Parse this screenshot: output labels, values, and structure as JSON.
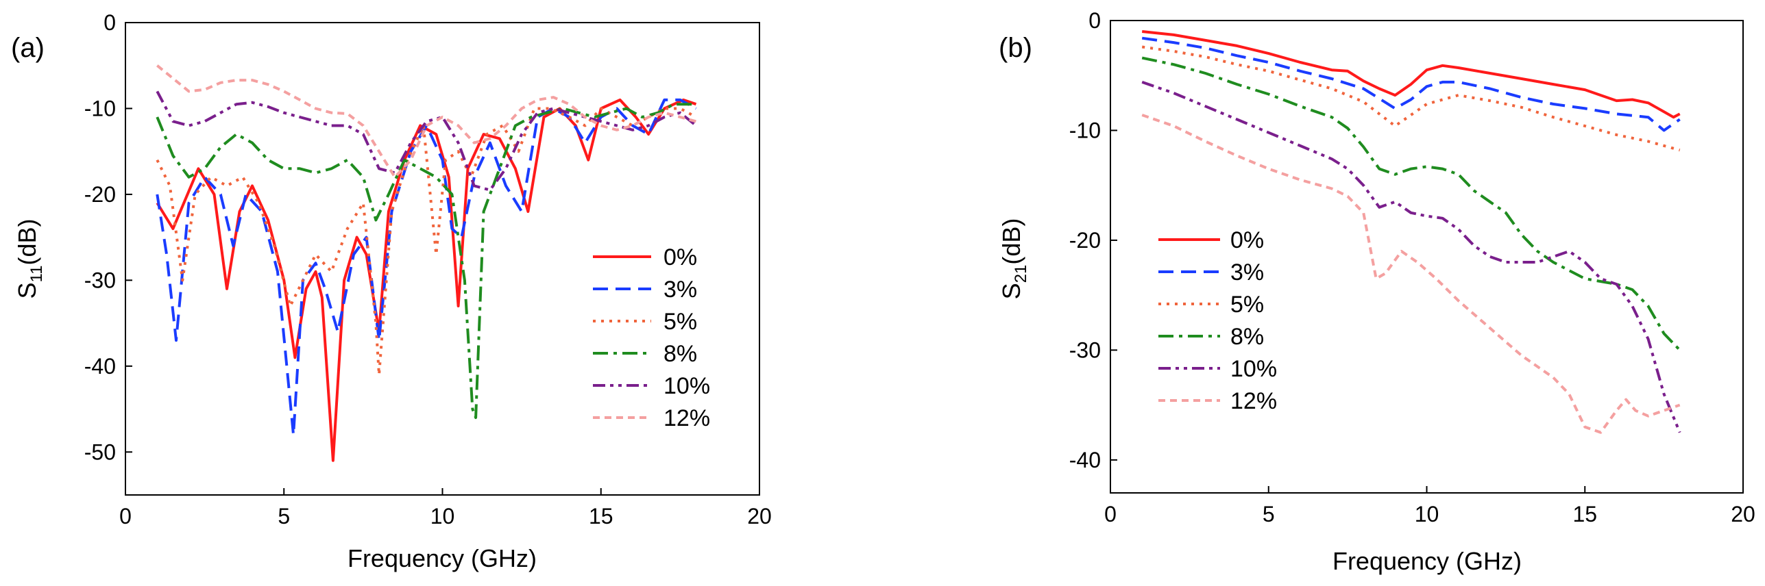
{
  "chart_data": [
    {
      "type": "line",
      "panel_label": "(a)",
      "xlabel": "Frequency (GHz)",
      "ylabel_main": "S",
      "ylabel_sub": "11",
      "ylabel_unit": "(dB)",
      "xlim": [
        0,
        20
      ],
      "ylim": [
        -55,
        0
      ],
      "xticks": [
        0,
        5,
        10,
        15,
        20
      ],
      "yticks": [
        0,
        -10,
        -20,
        -30,
        -40,
        -50
      ],
      "legend_position": "lower-right",
      "series": [
        {
          "name": "0%",
          "color": "#ff1a1a",
          "dash": "solid",
          "x": [
            1.0,
            1.5,
            2.3,
            2.8,
            3.2,
            3.6,
            4.0,
            4.5,
            5.0,
            5.35,
            5.7,
            6.0,
            6.2,
            6.55,
            6.9,
            7.3,
            7.6,
            8.0,
            8.3,
            8.8,
            9.3,
            9.8,
            10.2,
            10.5,
            10.8,
            11.3,
            11.8,
            12.3,
            12.7,
            13.2,
            13.7,
            14.2,
            14.6,
            15.0,
            15.6,
            16.1,
            16.5,
            17.0,
            17.6,
            18.0
          ],
          "y": [
            -21,
            -24,
            -17,
            -20,
            -31,
            -22,
            -19,
            -23,
            -30,
            -39,
            -31,
            -29,
            -32,
            -51,
            -30,
            -25,
            -27,
            -36,
            -22,
            -16,
            -12,
            -13,
            -18,
            -33,
            -17,
            -13,
            -13.5,
            -17,
            -22,
            -11,
            -10,
            -12,
            -16,
            -10,
            -9,
            -11,
            -13,
            -10,
            -9,
            -9.5
          ]
        },
        {
          "name": "3%",
          "color": "#1a3cff",
          "dash": "dashed",
          "x": [
            1.0,
            1.3,
            1.6,
            2.0,
            2.5,
            3.0,
            3.4,
            3.8,
            4.3,
            4.8,
            5.3,
            5.6,
            6.0,
            6.3,
            6.7,
            7.2,
            7.6,
            8.0,
            8.4,
            9.0,
            9.5,
            10.0,
            10.3,
            10.6,
            11.0,
            11.5,
            12.0,
            12.5,
            13.0,
            13.5,
            14.0,
            14.5,
            15.0,
            15.5,
            16.0,
            16.5,
            17.0,
            17.5,
            18.0
          ],
          "y": [
            -20,
            -27,
            -37,
            -21,
            -18,
            -20,
            -26,
            -20,
            -22,
            -29,
            -48,
            -30,
            -28,
            -31,
            -36,
            -27,
            -25,
            -37,
            -22,
            -15,
            -12,
            -16,
            -24,
            -25,
            -18,
            -14,
            -19,
            -22,
            -11,
            -10,
            -11,
            -14,
            -11,
            -10,
            -12,
            -13,
            -9,
            -9,
            -10
          ]
        },
        {
          "name": "5%",
          "color": "#f0643c",
          "dash": "dotted",
          "x": [
            1.0,
            1.4,
            1.8,
            2.2,
            2.7,
            3.2,
            3.7,
            4.2,
            4.7,
            5.2,
            5.6,
            6.0,
            6.5,
            7.0,
            7.5,
            7.9,
            8.0,
            8.4,
            8.9,
            9.4,
            9.8,
            10.1,
            10.5,
            10.9,
            11.4,
            11.9,
            12.4,
            12.9,
            13.4,
            14.0,
            14.5,
            15.0,
            15.5,
            16.0,
            16.5,
            17.0,
            17.5,
            18.0
          ],
          "y": [
            -16,
            -19,
            -30,
            -20,
            -18,
            -19,
            -18,
            -21,
            -26,
            -33,
            -30,
            -27,
            -29,
            -24,
            -21,
            -35,
            -41,
            -22,
            -16,
            -12,
            -27,
            -16,
            -15,
            -18,
            -13,
            -12,
            -15,
            -10,
            -10,
            -11,
            -12,
            -10,
            -11,
            -12,
            -11,
            -10,
            -10,
            -11
          ]
        },
        {
          "name": "8%",
          "color": "#1f8c1f",
          "dash": "dashdot",
          "x": [
            1.0,
            1.5,
            2.0,
            2.5,
            3.0,
            3.5,
            4.0,
            4.5,
            5.0,
            5.5,
            6.0,
            6.5,
            7.0,
            7.5,
            7.9,
            8.3,
            8.8,
            9.3,
            9.8,
            10.3,
            10.7,
            10.95,
            11.05,
            11.3,
            11.8,
            12.3,
            12.8,
            13.3,
            13.8,
            14.3,
            14.8,
            15.3,
            15.8,
            16.3,
            16.8,
            17.3,
            18.0
          ],
          "y": [
            -11,
            -15.5,
            -18,
            -17,
            -14.5,
            -13,
            -14,
            -16,
            -17,
            -17,
            -17.5,
            -17,
            -16,
            -18,
            -23,
            -20,
            -16,
            -17,
            -18,
            -20,
            -30,
            -45,
            -46,
            -22,
            -17,
            -12,
            -11,
            -10.5,
            -10,
            -10.5,
            -11,
            -10.5,
            -10,
            -11,
            -10.5,
            -9.5,
            -9.5
          ]
        },
        {
          "name": "10%",
          "color": "#7a1f8c",
          "dash": "dashdotdot",
          "x": [
            1.0,
            1.5,
            2.0,
            2.5,
            3.0,
            3.5,
            4.0,
            4.5,
            5.0,
            5.5,
            6.0,
            6.5,
            7.0,
            7.5,
            8.0,
            8.5,
            9.0,
            9.5,
            10.0,
            10.5,
            11.0,
            11.5,
            12.0,
            12.5,
            13.0,
            13.5,
            14.0,
            14.5,
            15.0,
            15.5,
            16.0,
            16.5,
            17.0,
            17.5,
            18.0
          ],
          "y": [
            -8,
            -11.5,
            -12,
            -11.5,
            -10.5,
            -9.5,
            -9.3,
            -9.8,
            -10.5,
            -11,
            -11.5,
            -12,
            -12,
            -13,
            -17,
            -17.5,
            -14,
            -11.5,
            -11,
            -14,
            -19,
            -19.5,
            -17,
            -13,
            -10.5,
            -10,
            -10.5,
            -11,
            -11.5,
            -12,
            -12.5,
            -12,
            -11,
            -10.5,
            -12
          ]
        },
        {
          "name": "12%",
          "color": "#f4a0a0",
          "dash": "shortdash",
          "x": [
            1.0,
            1.5,
            2.0,
            2.5,
            3.0,
            3.5,
            4.0,
            4.5,
            5.0,
            5.5,
            6.0,
            6.5,
            7.0,
            7.5,
            8.0,
            8.5,
            9.0,
            9.5,
            10.0,
            10.5,
            11.0,
            11.5,
            12.0,
            12.5,
            13.0,
            13.5,
            14.0,
            14.5,
            15.0,
            15.5,
            16.0,
            16.5,
            17.0,
            17.5,
            18.0
          ],
          "y": [
            -5,
            -6.5,
            -8,
            -7.8,
            -7,
            -6.7,
            -6.7,
            -7.2,
            -8,
            -9,
            -10,
            -10.5,
            -10.6,
            -12,
            -15,
            -18,
            -16,
            -12,
            -11,
            -12,
            -14,
            -13.5,
            -12,
            -10,
            -9,
            -8.7,
            -9.5,
            -11,
            -12,
            -12.5,
            -12,
            -11,
            -10.5,
            -11,
            -11.5
          ]
        }
      ]
    },
    {
      "type": "line",
      "panel_label": "(b)",
      "xlabel": "Frequency (GHz)",
      "ylabel_main": "S",
      "ylabel_sub": "21",
      "ylabel_unit": "(dB)",
      "xlim": [
        0,
        20
      ],
      "ylim": [
        -43,
        0
      ],
      "xticks": [
        0,
        5,
        10,
        15,
        20
      ],
      "yticks": [
        0,
        -10,
        -20,
        -30,
        -40
      ],
      "legend_position": "left-middle",
      "series": [
        {
          "name": "0%",
          "color": "#ff1a1a",
          "dash": "solid",
          "x": [
            1.0,
            2.0,
            3.0,
            4.0,
            5.0,
            6.0,
            7.0,
            7.5,
            8.0,
            8.5,
            9.0,
            9.5,
            10.0,
            10.5,
            11.0,
            12.0,
            13.0,
            14.0,
            15.0,
            15.5,
            16.0,
            16.5,
            17.0,
            17.5,
            17.8,
            18.0
          ],
          "y": [
            -1,
            -1.3,
            -1.8,
            -2.3,
            -3,
            -3.8,
            -4.5,
            -4.6,
            -5.5,
            -6.2,
            -6.8,
            -5.8,
            -4.5,
            -4.1,
            -4.3,
            -4.8,
            -5.3,
            -5.8,
            -6.3,
            -6.8,
            -7.3,
            -7.2,
            -7.5,
            -8.3,
            -8.8,
            -8.5
          ]
        },
        {
          "name": "3%",
          "color": "#1a3cff",
          "dash": "dashed",
          "x": [
            1.0,
            2.0,
            3.0,
            4.0,
            5.0,
            6.0,
            7.0,
            8.0,
            9.0,
            9.5,
            10.0,
            10.5,
            11.0,
            12.0,
            13.0,
            14.0,
            15.0,
            16.0,
            17.0,
            17.5,
            18.0
          ],
          "y": [
            -1.6,
            -2,
            -2.5,
            -3.2,
            -3.8,
            -4.6,
            -5.3,
            -6.2,
            -8,
            -7.2,
            -6,
            -5.6,
            -5.6,
            -6.2,
            -7,
            -7.6,
            -8,
            -8.5,
            -8.8,
            -10,
            -9
          ]
        },
        {
          "name": "5%",
          "color": "#f0643c",
          "dash": "dotted",
          "x": [
            1.0,
            2.0,
            3.0,
            4.0,
            5.0,
            6.0,
            7.0,
            8.0,
            9.0,
            10.0,
            11.0,
            12.0,
            13.0,
            14.0,
            15.0,
            16.0,
            17.0,
            18.0
          ],
          "y": [
            -2.4,
            -2.8,
            -3.3,
            -4,
            -4.6,
            -5.4,
            -6.2,
            -7.4,
            -9.6,
            -7.6,
            -6.8,
            -7.3,
            -7.9,
            -8.8,
            -9.6,
            -10.4,
            -11,
            -11.8
          ]
        },
        {
          "name": "8%",
          "color": "#1f8c1f",
          "dash": "dashdot",
          "x": [
            1.0,
            2.0,
            3.0,
            4.0,
            5.0,
            6.0,
            7.0,
            7.5,
            8.0,
            8.5,
            9.0,
            9.5,
            10.0,
            10.5,
            11.0,
            11.5,
            12.0,
            12.5,
            13.0,
            13.5,
            14.0,
            15.0,
            16.0,
            16.5,
            17.0,
            17.5,
            18.0
          ],
          "y": [
            -3.4,
            -4,
            -4.8,
            -5.8,
            -6.7,
            -7.8,
            -8.8,
            -9.8,
            -11.5,
            -13.5,
            -14,
            -13.5,
            -13.3,
            -13.5,
            -14,
            -15.5,
            -16.5,
            -17.5,
            -19.5,
            -21,
            -22,
            -23.5,
            -24,
            -24.5,
            -26,
            -28.5,
            -30
          ]
        },
        {
          "name": "10%",
          "color": "#7a1f8c",
          "dash": "dashdotdot",
          "x": [
            1.0,
            2.0,
            3.0,
            4.0,
            5.0,
            6.0,
            7.0,
            7.5,
            8.0,
            8.5,
            9.0,
            9.5,
            10.0,
            10.5,
            11.0,
            11.5,
            12.0,
            12.5,
            13.0,
            13.5,
            14.0,
            14.5,
            15.0,
            15.5,
            16.0,
            16.5,
            17.0,
            17.5,
            18.0
          ],
          "y": [
            -5.6,
            -6.6,
            -7.8,
            -9,
            -10.2,
            -11.4,
            -12.6,
            -13.5,
            -15,
            -17,
            -16.5,
            -17.5,
            -17.8,
            -18,
            -19,
            -20.5,
            -21.5,
            -22,
            -22,
            -22,
            -21.5,
            -21,
            -22,
            -23.5,
            -24,
            -26,
            -29,
            -34,
            -37.5
          ]
        },
        {
          "name": "12%",
          "color": "#f4a0a0",
          "dash": "shortdash",
          "x": [
            1.0,
            2.0,
            3.0,
            4.0,
            5.0,
            6.0,
            7.0,
            7.5,
            8.0,
            8.4,
            8.7,
            9.2,
            9.7,
            10.3,
            11.0,
            12.0,
            13.0,
            14.0,
            14.5,
            15.0,
            15.5,
            16.0,
            16.3,
            16.6,
            17.0,
            17.5,
            18.0
          ],
          "y": [
            -8.6,
            -9.6,
            -11,
            -12.3,
            -13.5,
            -14.5,
            -15.3,
            -16,
            -17.5,
            -23.5,
            -23,
            -21,
            -22,
            -23.5,
            -25.5,
            -28,
            -30.5,
            -32.5,
            -34,
            -37,
            -37.5,
            -35.5,
            -34.5,
            -35.5,
            -36,
            -35.5,
            -35
          ]
        }
      ]
    }
  ]
}
